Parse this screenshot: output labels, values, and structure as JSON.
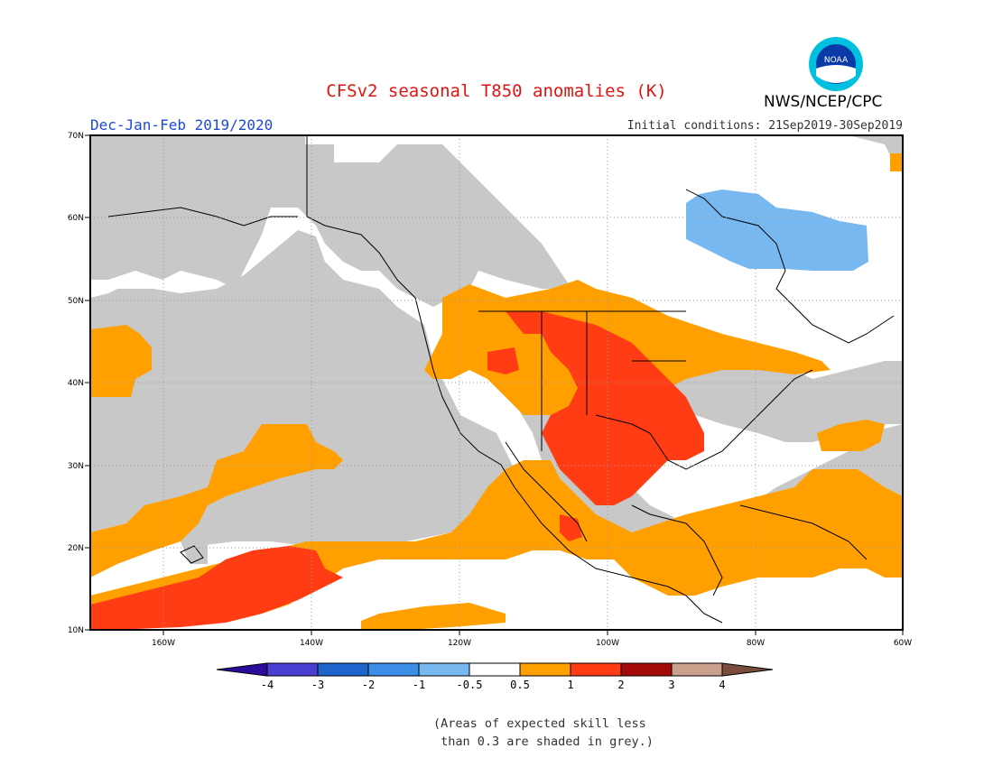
{
  "title": "CFSv2 seasonal T850 anomalies (K)",
  "agency": "NWS/NCEP/CPC",
  "logo_text": "NOAA",
  "season": "Dec-Jan-Feb 2019/2020",
  "initial_conditions": "Initial conditions: 21Sep2019-30Sep2019",
  "axes": {
    "lat_labels": [
      "70N",
      "60N",
      "50N",
      "40N",
      "30N",
      "20N",
      "10N"
    ],
    "lon_labels": [
      "160W",
      "140W",
      "120W",
      "100W",
      "80W",
      "60W"
    ]
  },
  "colorbar": {
    "ticks": [
      "-4",
      "-3",
      "-2",
      "-1",
      "-0.5",
      "0.5",
      "1",
      "2",
      "3",
      "4"
    ],
    "colors": [
      "#2b0a9e",
      "#4a3fd1",
      "#1e64cc",
      "#3d8ee6",
      "#78b8f0",
      "#ffffff",
      "#ffa000",
      "#ff3c14",
      "#a50a0a",
      "#c8a08c",
      "#7a4c3c"
    ]
  },
  "note": "(Areas of expected skill less\n than 0.3 are shaded in grey.)",
  "colors": {
    "grey": "#c8c8c8",
    "orange": "#ffa000",
    "red": "#ff3c14",
    "lightblue": "#78b8f0"
  }
}
